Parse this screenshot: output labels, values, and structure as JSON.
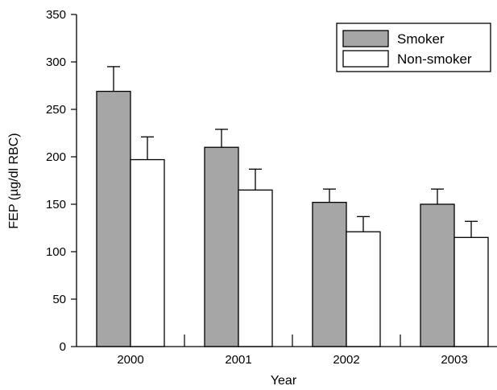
{
  "chart_data": {
    "type": "bar",
    "title": "",
    "xlabel": "Year",
    "ylabel": "FEP (µg/dl RBC)",
    "ylim": [
      0,
      350
    ],
    "yticks": [
      0,
      50,
      100,
      150,
      200,
      250,
      300,
      350
    ],
    "categories": [
      "2000",
      "2001",
      "2002",
      "2003"
    ],
    "grid": false,
    "legend_position": "top-right",
    "series": [
      {
        "name": "Smoker",
        "color": "#a6a6a6",
        "values": [
          269,
          210,
          152,
          150
        ],
        "errors": [
          26,
          19,
          14,
          16
        ]
      },
      {
        "name": "Non-smoker",
        "color": "#ffffff",
        "values": [
          197,
          165,
          121,
          115
        ],
        "errors": [
          24,
          22,
          16,
          17
        ]
      }
    ]
  }
}
